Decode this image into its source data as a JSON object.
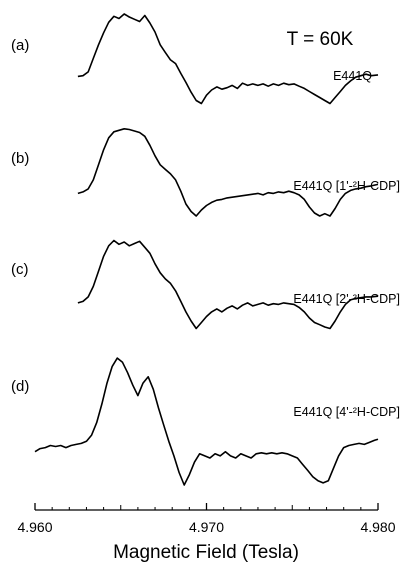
{
  "chart_data": {
    "type": "line",
    "title": "",
    "annotation": "T = 60K",
    "xlabel": "Magnetic Field (Tesla)",
    "ylabel": "",
    "xlim": [
      4.96,
      4.98
    ],
    "xticks": [
      "4.960",
      "4.970",
      "4.980"
    ],
    "xtick_values": [
      4.96,
      4.97,
      4.98
    ],
    "grid": false,
    "legend": "none",
    "line_color": "#000000",
    "series": [
      {
        "panel": "(a)",
        "label": "E441Q",
        "points": [
          [
            4.9625,
            0.16
          ],
          [
            4.9628,
            0.17
          ],
          [
            4.9631,
            0.22
          ],
          [
            4.9634,
            0.4
          ],
          [
            4.9637,
            0.58
          ],
          [
            4.964,
            0.74
          ],
          [
            4.9643,
            0.88
          ],
          [
            4.9646,
            0.96
          ],
          [
            4.9649,
            0.93
          ],
          [
            4.9652,
            0.99
          ],
          [
            4.9655,
            0.95
          ],
          [
            4.9658,
            0.92
          ],
          [
            4.9661,
            0.89
          ],
          [
            4.9664,
            0.97
          ],
          [
            4.9667,
            0.87
          ],
          [
            4.967,
            0.75
          ],
          [
            4.9673,
            0.58
          ],
          [
            4.9676,
            0.48
          ],
          [
            4.9679,
            0.38
          ],
          [
            4.9682,
            0.33
          ],
          [
            4.9685,
            0.2
          ],
          [
            4.9688,
            0.08
          ],
          [
            4.9691,
            -0.05
          ],
          [
            4.9694,
            -0.16
          ],
          [
            4.9697,
            -0.2
          ],
          [
            4.97,
            -0.09
          ],
          [
            4.9703,
            -0.02
          ],
          [
            4.9706,
            0.02
          ],
          [
            4.9709,
            -0.01
          ],
          [
            4.9712,
            0.01
          ],
          [
            4.9715,
            0.04
          ],
          [
            4.9718,
            0.0
          ],
          [
            4.9721,
            0.07
          ],
          [
            4.9724,
            0.04
          ],
          [
            4.9727,
            0.06
          ],
          [
            4.973,
            0.04
          ],
          [
            4.9733,
            0.06
          ],
          [
            4.9736,
            0.03
          ],
          [
            4.9739,
            0.06
          ],
          [
            4.9742,
            0.04
          ],
          [
            4.9745,
            0.07
          ],
          [
            4.9748,
            0.05
          ],
          [
            4.9751,
            0.06
          ],
          [
            4.9754,
            0.03
          ],
          [
            4.9757,
            0.0
          ],
          [
            4.976,
            -0.04
          ],
          [
            4.9763,
            -0.08
          ],
          [
            4.9766,
            -0.12
          ],
          [
            4.9769,
            -0.16
          ],
          [
            4.9772,
            -0.2
          ],
          [
            4.9775,
            -0.12
          ],
          [
            4.9778,
            -0.04
          ],
          [
            4.9781,
            0.04
          ],
          [
            4.9784,
            0.1
          ],
          [
            4.9787,
            0.15
          ],
          [
            4.979,
            0.17
          ],
          [
            4.9793,
            0.19
          ],
          [
            4.9796,
            0.17
          ],
          [
            4.98,
            0.18
          ]
        ]
      },
      {
        "panel": "(b)",
        "label": "E441Q [1'-²H-CDP]",
        "points": [
          [
            4.9625,
            0.12
          ],
          [
            4.9628,
            0.14
          ],
          [
            4.9631,
            0.18
          ],
          [
            4.9634,
            0.3
          ],
          [
            4.9637,
            0.5
          ],
          [
            4.964,
            0.7
          ],
          [
            4.9643,
            0.86
          ],
          [
            4.9646,
            0.94
          ],
          [
            4.9649,
            0.96
          ],
          [
            4.9652,
            0.98
          ],
          [
            4.9655,
            0.97
          ],
          [
            4.9658,
            0.95
          ],
          [
            4.9661,
            0.93
          ],
          [
            4.9664,
            0.88
          ],
          [
            4.9667,
            0.76
          ],
          [
            4.967,
            0.62
          ],
          [
            4.9673,
            0.5
          ],
          [
            4.9676,
            0.44
          ],
          [
            4.9679,
            0.38
          ],
          [
            4.9682,
            0.3
          ],
          [
            4.9685,
            0.15
          ],
          [
            4.9688,
            -0.02
          ],
          [
            4.9691,
            -0.12
          ],
          [
            4.9694,
            -0.18
          ],
          [
            4.9697,
            -0.1
          ],
          [
            4.97,
            -0.04
          ],
          [
            4.9703,
            0.0
          ],
          [
            4.9706,
            0.03
          ],
          [
            4.9709,
            0.04
          ],
          [
            4.9712,
            0.06
          ],
          [
            4.9715,
            0.07
          ],
          [
            4.9718,
            0.08
          ],
          [
            4.9721,
            0.09
          ],
          [
            4.9724,
            0.1
          ],
          [
            4.9727,
            0.11
          ],
          [
            4.973,
            0.12
          ],
          [
            4.9733,
            0.1
          ],
          [
            4.9736,
            0.13
          ],
          [
            4.9739,
            0.12
          ],
          [
            4.9742,
            0.14
          ],
          [
            4.9745,
            0.13
          ],
          [
            4.9748,
            0.15
          ],
          [
            4.9751,
            0.13
          ],
          [
            4.9754,
            0.1
          ],
          [
            4.9757,
            0.04
          ],
          [
            4.976,
            -0.06
          ],
          [
            4.9763,
            -0.14
          ],
          [
            4.9766,
            -0.18
          ],
          [
            4.9769,
            -0.15
          ],
          [
            4.9772,
            -0.18
          ],
          [
            4.9775,
            -0.08
          ],
          [
            4.9778,
            0.04
          ],
          [
            4.9781,
            0.12
          ],
          [
            4.9784,
            0.16
          ],
          [
            4.9787,
            0.18
          ],
          [
            4.979,
            0.19
          ],
          [
            4.9793,
            0.21
          ],
          [
            4.9796,
            0.22
          ],
          [
            4.98,
            0.24
          ]
        ]
      },
      {
        "panel": "(c)",
        "label": "E441Q [2'-²H-CDP]",
        "points": [
          [
            4.9625,
            0.14
          ],
          [
            4.9628,
            0.16
          ],
          [
            4.9631,
            0.22
          ],
          [
            4.9634,
            0.36
          ],
          [
            4.9637,
            0.56
          ],
          [
            4.964,
            0.76
          ],
          [
            4.9643,
            0.9
          ],
          [
            4.9646,
            0.97
          ],
          [
            4.9649,
            0.92
          ],
          [
            4.9652,
            0.95
          ],
          [
            4.9655,
            0.9
          ],
          [
            4.9658,
            0.93
          ],
          [
            4.9661,
            0.96
          ],
          [
            4.9664,
            0.88
          ],
          [
            4.9667,
            0.8
          ],
          [
            4.967,
            0.66
          ],
          [
            4.9673,
            0.54
          ],
          [
            4.9676,
            0.46
          ],
          [
            4.9679,
            0.4
          ],
          [
            4.9682,
            0.3
          ],
          [
            4.9685,
            0.16
          ],
          [
            4.9688,
            0.02
          ],
          [
            4.9691,
            -0.1
          ],
          [
            4.9694,
            -0.2
          ],
          [
            4.9697,
            -0.12
          ],
          [
            4.97,
            -0.04
          ],
          [
            4.9703,
            0.02
          ],
          [
            4.9706,
            0.06
          ],
          [
            4.9709,
            0.02
          ],
          [
            4.9712,
            0.07
          ],
          [
            4.9715,
            0.1
          ],
          [
            4.9718,
            0.06
          ],
          [
            4.9721,
            0.11
          ],
          [
            4.9724,
            0.14
          ],
          [
            4.9727,
            0.1
          ],
          [
            4.973,
            0.12
          ],
          [
            4.9733,
            0.14
          ],
          [
            4.9736,
            0.11
          ],
          [
            4.9739,
            0.13
          ],
          [
            4.9742,
            0.12
          ],
          [
            4.9745,
            0.14
          ],
          [
            4.9748,
            0.13
          ],
          [
            4.9751,
            0.12
          ],
          [
            4.9754,
            0.08
          ],
          [
            4.9757,
            0.02
          ],
          [
            4.976,
            -0.06
          ],
          [
            4.9763,
            -0.12
          ],
          [
            4.9766,
            -0.15
          ],
          [
            4.9769,
            -0.18
          ],
          [
            4.9772,
            -0.2
          ],
          [
            4.9775,
            -0.1
          ],
          [
            4.9778,
            0.02
          ],
          [
            4.9781,
            0.12
          ],
          [
            4.9784,
            0.18
          ],
          [
            4.9787,
            0.2
          ],
          [
            4.979,
            0.21
          ],
          [
            4.9793,
            0.22
          ],
          [
            4.9796,
            0.22
          ],
          [
            4.98,
            0.23
          ]
        ]
      },
      {
        "panel": "(d)",
        "label": "E441Q [4'-²H-CDP]",
        "points": [
          [
            4.96,
            0.06
          ],
          [
            4.9603,
            0.09
          ],
          [
            4.9606,
            0.1
          ],
          [
            4.9609,
            0.12
          ],
          [
            4.9612,
            0.11
          ],
          [
            4.9615,
            0.12
          ],
          [
            4.9618,
            0.1
          ],
          [
            4.9621,
            0.12
          ],
          [
            4.9624,
            0.13
          ],
          [
            4.9627,
            0.14
          ],
          [
            4.963,
            0.16
          ],
          [
            4.9633,
            0.22
          ],
          [
            4.9636,
            0.34
          ],
          [
            4.9639,
            0.52
          ],
          [
            4.9642,
            0.72
          ],
          [
            4.9645,
            0.88
          ],
          [
            4.9648,
            0.96
          ],
          [
            4.9651,
            0.92
          ],
          [
            4.9654,
            0.82
          ],
          [
            4.9657,
            0.7
          ],
          [
            4.966,
            0.6
          ],
          [
            4.9663,
            0.72
          ],
          [
            4.9666,
            0.78
          ],
          [
            4.9669,
            0.66
          ],
          [
            4.9672,
            0.48
          ],
          [
            4.9675,
            0.32
          ],
          [
            4.9678,
            0.16
          ],
          [
            4.9681,
            0.02
          ],
          [
            4.9684,
            -0.14
          ],
          [
            4.9687,
            -0.26
          ],
          [
            4.969,
            -0.16
          ],
          [
            4.9693,
            -0.04
          ],
          [
            4.9696,
            0.04
          ],
          [
            4.9699,
            0.02
          ],
          [
            4.9702,
            0.0
          ],
          [
            4.9705,
            0.04
          ],
          [
            4.9708,
            0.02
          ],
          [
            4.9711,
            0.06
          ],
          [
            4.9714,
            0.02
          ],
          [
            4.9717,
            0.0
          ],
          [
            4.972,
            0.04
          ],
          [
            4.9723,
            0.02
          ],
          [
            4.9726,
            0.0
          ],
          [
            4.9729,
            0.04
          ],
          [
            4.9732,
            0.05
          ],
          [
            4.9735,
            0.04
          ],
          [
            4.9738,
            0.05
          ],
          [
            4.9741,
            0.04
          ],
          [
            4.9744,
            0.05
          ],
          [
            4.9747,
            0.04
          ],
          [
            4.975,
            0.02
          ],
          [
            4.9753,
            0.0
          ],
          [
            4.9756,
            -0.06
          ],
          [
            4.9759,
            -0.12
          ],
          [
            4.9762,
            -0.18
          ],
          [
            4.9765,
            -0.22
          ],
          [
            4.9768,
            -0.24
          ],
          [
            4.9771,
            -0.22
          ],
          [
            4.9774,
            -0.1
          ],
          [
            4.9777,
            0.02
          ],
          [
            4.978,
            0.1
          ],
          [
            4.9783,
            0.12
          ],
          [
            4.9786,
            0.13
          ],
          [
            4.9789,
            0.14
          ],
          [
            4.9792,
            0.13
          ],
          [
            4.9795,
            0.15
          ],
          [
            4.9798,
            0.17
          ],
          [
            4.98,
            0.18
          ]
        ]
      }
    ]
  }
}
